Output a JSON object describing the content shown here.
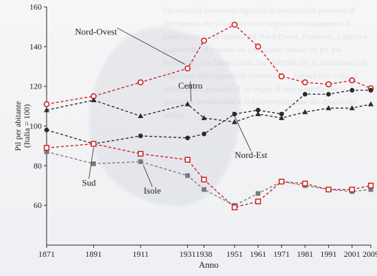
{
  "chart_data": {
    "type": "line",
    "x": [
      1871,
      1891,
      1911,
      1931,
      1938,
      1951,
      1961,
      1971,
      1981,
      1991,
      2001,
      2009
    ],
    "xlabel": "Anno",
    "ylabel": [
      "Pil per abitante",
      "(Italia = 100)"
    ],
    "ylim": [
      40,
      160
    ],
    "yticks": [
      60,
      80,
      100,
      120,
      140,
      160
    ],
    "grid": false,
    "colors": {
      "Nord-Ovest": "#cc1f1f",
      "Centro": "#2b2b2b",
      "Nord-Est": "#2b2b2b",
      "Isole": "#7a7a7a",
      "Sud": "#cc1f1f"
    },
    "series": [
      {
        "name": "Nord-Ovest",
        "values": [
          111,
          115,
          122,
          129,
          143,
          151,
          140,
          125,
          122,
          121,
          123,
          119
        ],
        "marker": "circle-open",
        "color": "#cc1f1f"
      },
      {
        "name": "Centro",
        "values": [
          108,
          113,
          105,
          111,
          104,
          102,
          106,
          104,
          107,
          109,
          109,
          111
        ],
        "marker": "triangle",
        "color": "#2b2b2b"
      },
      {
        "name": "Nord-Est",
        "values": [
          98,
          91,
          95,
          94,
          96,
          106,
          108,
          106,
          116,
          116,
          118,
          118
        ],
        "marker": "circle",
        "color": "#2b2b2b"
      },
      {
        "name": "Isole",
        "values": [
          87,
          81,
          82,
          75,
          68,
          60,
          66,
          72,
          70,
          68,
          67,
          68
        ],
        "marker": "square",
        "color": "#7a7a7a"
      },
      {
        "name": "Sud",
        "values": [
          89,
          91,
          86,
          83,
          73,
          59,
          62,
          72,
          71,
          68,
          68,
          70
        ],
        "marker": "square-open",
        "color": "#cc1f1f"
      }
    ],
    "annotations": [
      {
        "text": "Nord-Ovest",
        "series": "Nord-Ovest"
      },
      {
        "text": "Centro",
        "series": "Centro"
      },
      {
        "text": "Nord-Est",
        "series": "Nord-Est"
      },
      {
        "text": "Isole",
        "series": "Isole"
      },
      {
        "text": "Sud",
        "series": "Sud"
      }
    ]
  },
  "background_text": "Un secondo fenomeno riguarda lo spettacolare processo di divergenza che si osserva tra le regioni nell'andamento di lungo periodo: le regioni del Nord-Ovest, Piemonte, Liguria e Lombardia, si trovano da condizioni iniziali un po' più favorevoli, ma furono dalla fine dell'800 che si riscontrano gli indicatori dell'espansione economica... Ancora una volta, si tratta di uno scenario di un segno di non scoperta che la questione meridionale e la rappresentazione del divario del centro."
}
